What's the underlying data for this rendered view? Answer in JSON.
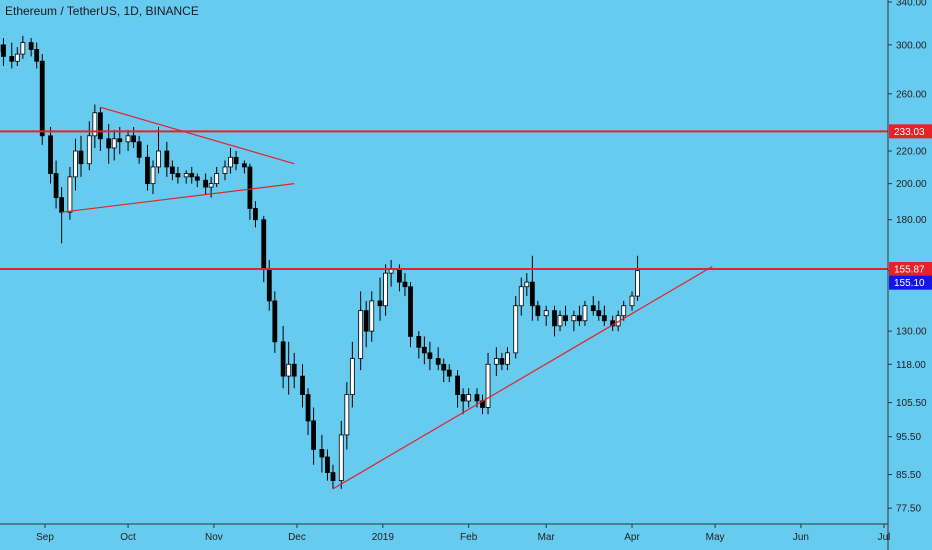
{
  "chart_data": {
    "type": "candlestick",
    "title": "Ethereum / TetherUS, 1D, BINANCE",
    "ylim": [
      74,
      342
    ],
    "y_scale": "log",
    "y_ticks": [
      "340.00",
      "300.00",
      "260.00",
      "220.00",
      "200.00",
      "180.00",
      "155.10",
      "130.00",
      "118.00",
      "105.50",
      "95.50",
      "85.50",
      "77.50"
    ],
    "x_ticks": [
      "Sep",
      "Oct",
      "Nov",
      "Dec",
      "2019",
      "Feb",
      "Mar",
      "Apr",
      "May",
      "Jun",
      "Jul"
    ],
    "horizontal_levels": [
      {
        "value": 233.03,
        "label": "233.03",
        "color": "#e5212a"
      },
      {
        "value": 155.87,
        "label": "155.87",
        "color": "#e5212a"
      }
    ],
    "current_price": {
      "value": 155.1,
      "label": "155.10",
      "color": "#1515e6"
    },
    "trendlines": [
      {
        "from": [
          "2018-09-21",
          250
        ],
        "to": [
          "2018-11-30",
          212
        ]
      },
      {
        "from": [
          "2018-09-07",
          184
        ],
        "to": [
          "2018-11-30",
          200
        ]
      },
      {
        "from": [
          "2018-12-14",
          82
        ],
        "to": [
          "2019-04-30",
          157
        ]
      }
    ],
    "candles": [
      [
        "2018-08-06",
        316,
        322,
        296,
        302
      ],
      [
        "2018-08-08",
        302,
        318,
        290,
        296
      ],
      [
        "2018-08-10",
        296,
        305,
        280,
        284
      ],
      [
        "2018-08-13",
        284,
        300,
        278,
        294
      ],
      [
        "2018-08-15",
        294,
        310,
        286,
        300
      ],
      [
        "2018-08-17",
        300,
        306,
        282,
        290
      ],
      [
        "2018-08-20",
        290,
        302,
        280,
        286
      ],
      [
        "2018-08-22",
        286,
        298,
        282,
        292
      ],
      [
        "2018-08-24",
        292,
        308,
        288,
        302
      ],
      [
        "2018-08-27",
        302,
        306,
        290,
        296
      ],
      [
        "2018-08-29",
        296,
        302,
        280,
        286
      ],
      [
        "2018-08-31",
        286,
        292,
        224,
        230
      ],
      [
        "2018-09-03",
        230,
        236,
        200,
        206
      ],
      [
        "2018-09-05",
        206,
        214,
        186,
        192
      ],
      [
        "2018-09-07",
        192,
        198,
        168,
        184
      ],
      [
        "2018-09-10",
        184,
        210,
        180,
        204
      ],
      [
        "2018-09-12",
        204,
        228,
        196,
        220
      ],
      [
        "2018-09-14",
        220,
        230,
        204,
        212
      ],
      [
        "2018-09-17",
        212,
        240,
        208,
        230
      ],
      [
        "2018-09-19",
        230,
        252,
        222,
        246
      ],
      [
        "2018-09-21",
        246,
        250,
        220,
        228
      ],
      [
        "2018-09-24",
        228,
        238,
        212,
        222
      ],
      [
        "2018-09-26",
        222,
        234,
        214,
        228
      ],
      [
        "2018-09-28",
        228,
        236,
        218,
        226
      ],
      [
        "2018-10-01",
        226,
        234,
        220,
        230
      ],
      [
        "2018-10-03",
        230,
        236,
        222,
        226
      ],
      [
        "2018-10-05",
        226,
        230,
        212,
        216
      ],
      [
        "2018-10-08",
        216,
        224,
        196,
        200
      ],
      [
        "2018-10-10",
        200,
        214,
        194,
        210
      ],
      [
        "2018-10-12",
        210,
        236,
        206,
        220
      ],
      [
        "2018-10-15",
        220,
        226,
        204,
        210
      ],
      [
        "2018-10-17",
        210,
        214,
        202,
        206
      ],
      [
        "2018-10-19",
        206,
        210,
        200,
        204
      ],
      [
        "2018-10-22",
        204,
        208,
        200,
        206
      ],
      [
        "2018-10-24",
        206,
        210,
        200,
        204
      ],
      [
        "2018-10-26",
        204,
        206,
        198,
        202
      ],
      [
        "2018-10-29",
        202,
        206,
        194,
        198
      ],
      [
        "2018-10-31",
        198,
        204,
        192,
        200
      ],
      [
        "2018-11-02",
        200,
        210,
        198,
        206
      ],
      [
        "2018-11-05",
        206,
        214,
        202,
        210
      ],
      [
        "2018-11-07",
        210,
        222,
        206,
        216
      ],
      [
        "2018-11-09",
        216,
        220,
        208,
        212
      ],
      [
        "2018-11-12",
        212,
        214,
        206,
        210
      ],
      [
        "2018-11-14",
        210,
        212,
        180,
        186
      ],
      [
        "2018-11-16",
        186,
        190,
        176,
        180
      ],
      [
        "2018-11-19",
        180,
        182,
        150,
        156
      ],
      [
        "2018-11-21",
        156,
        160,
        138,
        142
      ],
      [
        "2018-11-23",
        142,
        146,
        122,
        126
      ],
      [
        "2018-11-26",
        126,
        132,
        110,
        114
      ],
      [
        "2018-11-28",
        114,
        126,
        108,
        118
      ],
      [
        "2018-11-30",
        118,
        122,
        110,
        114
      ],
      [
        "2018-12-03",
        114,
        118,
        104,
        108
      ],
      [
        "2018-12-05",
        108,
        110,
        96,
        100
      ],
      [
        "2018-12-07",
        100,
        104,
        88,
        92
      ],
      [
        "2018-12-10",
        92,
        96,
        86,
        90
      ],
      [
        "2018-12-12",
        90,
        92,
        84,
        86
      ],
      [
        "2018-12-14",
        86,
        88,
        82,
        84
      ],
      [
        "2018-12-17",
        84,
        100,
        82,
        96
      ],
      [
        "2018-12-19",
        96,
        112,
        92,
        108
      ],
      [
        "2018-12-21",
        108,
        126,
        104,
        120
      ],
      [
        "2018-12-24",
        120,
        146,
        116,
        138
      ],
      [
        "2018-12-26",
        138,
        142,
        124,
        130
      ],
      [
        "2018-12-28",
        130,
        146,
        126,
        142
      ],
      [
        "2018-12-31",
        142,
        152,
        134,
        140
      ],
      [
        "2019-01-02",
        140,
        158,
        136,
        154
      ],
      [
        "2019-01-04",
        154,
        160,
        148,
        156
      ],
      [
        "2019-01-07",
        156,
        158,
        146,
        150
      ],
      [
        "2019-01-09",
        150,
        154,
        144,
        148
      ],
      [
        "2019-01-11",
        148,
        150,
        124,
        128
      ],
      [
        "2019-01-14",
        128,
        130,
        120,
        124
      ],
      [
        "2019-01-16",
        124,
        128,
        118,
        122
      ],
      [
        "2019-01-18",
        122,
        126,
        116,
        120
      ],
      [
        "2019-01-21",
        120,
        124,
        116,
        118
      ],
      [
        "2019-01-23",
        118,
        120,
        112,
        116
      ],
      [
        "2019-01-25",
        116,
        118,
        112,
        114
      ],
      [
        "2019-01-28",
        114,
        116,
        104,
        108
      ],
      [
        "2019-01-30",
        108,
        110,
        102,
        106
      ],
      [
        "2019-02-01",
        106,
        110,
        104,
        108
      ],
      [
        "2019-02-04",
        108,
        110,
        104,
        106
      ],
      [
        "2019-02-06",
        106,
        108,
        102,
        104
      ],
      [
        "2019-02-08",
        104,
        122,
        102,
        118
      ],
      [
        "2019-02-11",
        118,
        124,
        114,
        120
      ],
      [
        "2019-02-13",
        120,
        122,
        116,
        118
      ],
      [
        "2019-02-15",
        118,
        124,
        116,
        122
      ],
      [
        "2019-02-18",
        122,
        144,
        120,
        140
      ],
      [
        "2019-02-20",
        140,
        152,
        136,
        148
      ],
      [
        "2019-02-22",
        148,
        154,
        144,
        150
      ],
      [
        "2019-02-24",
        150,
        162,
        134,
        140
      ],
      [
        "2019-02-26",
        140,
        142,
        134,
        136
      ],
      [
        "2019-03-01",
        136,
        140,
        132,
        138
      ],
      [
        "2019-03-04",
        138,
        140,
        128,
        132
      ],
      [
        "2019-03-06",
        132,
        138,
        130,
        136
      ],
      [
        "2019-03-08",
        136,
        140,
        132,
        134
      ],
      [
        "2019-03-11",
        134,
        138,
        130,
        136
      ],
      [
        "2019-03-13",
        136,
        140,
        132,
        134
      ],
      [
        "2019-03-15",
        134,
        142,
        132,
        140
      ],
      [
        "2019-03-18",
        140,
        144,
        136,
        138
      ],
      [
        "2019-03-20",
        138,
        142,
        134,
        136
      ],
      [
        "2019-03-22",
        136,
        140,
        132,
        134
      ],
      [
        "2019-03-25",
        134,
        136,
        130,
        132
      ],
      [
        "2019-03-27",
        132,
        138,
        130,
        136
      ],
      [
        "2019-03-29",
        136,
        142,
        134,
        140
      ],
      [
        "2019-04-01",
        140,
        146,
        138,
        144
      ],
      [
        "2019-04-03",
        144,
        162,
        142,
        155.1
      ]
    ]
  }
}
